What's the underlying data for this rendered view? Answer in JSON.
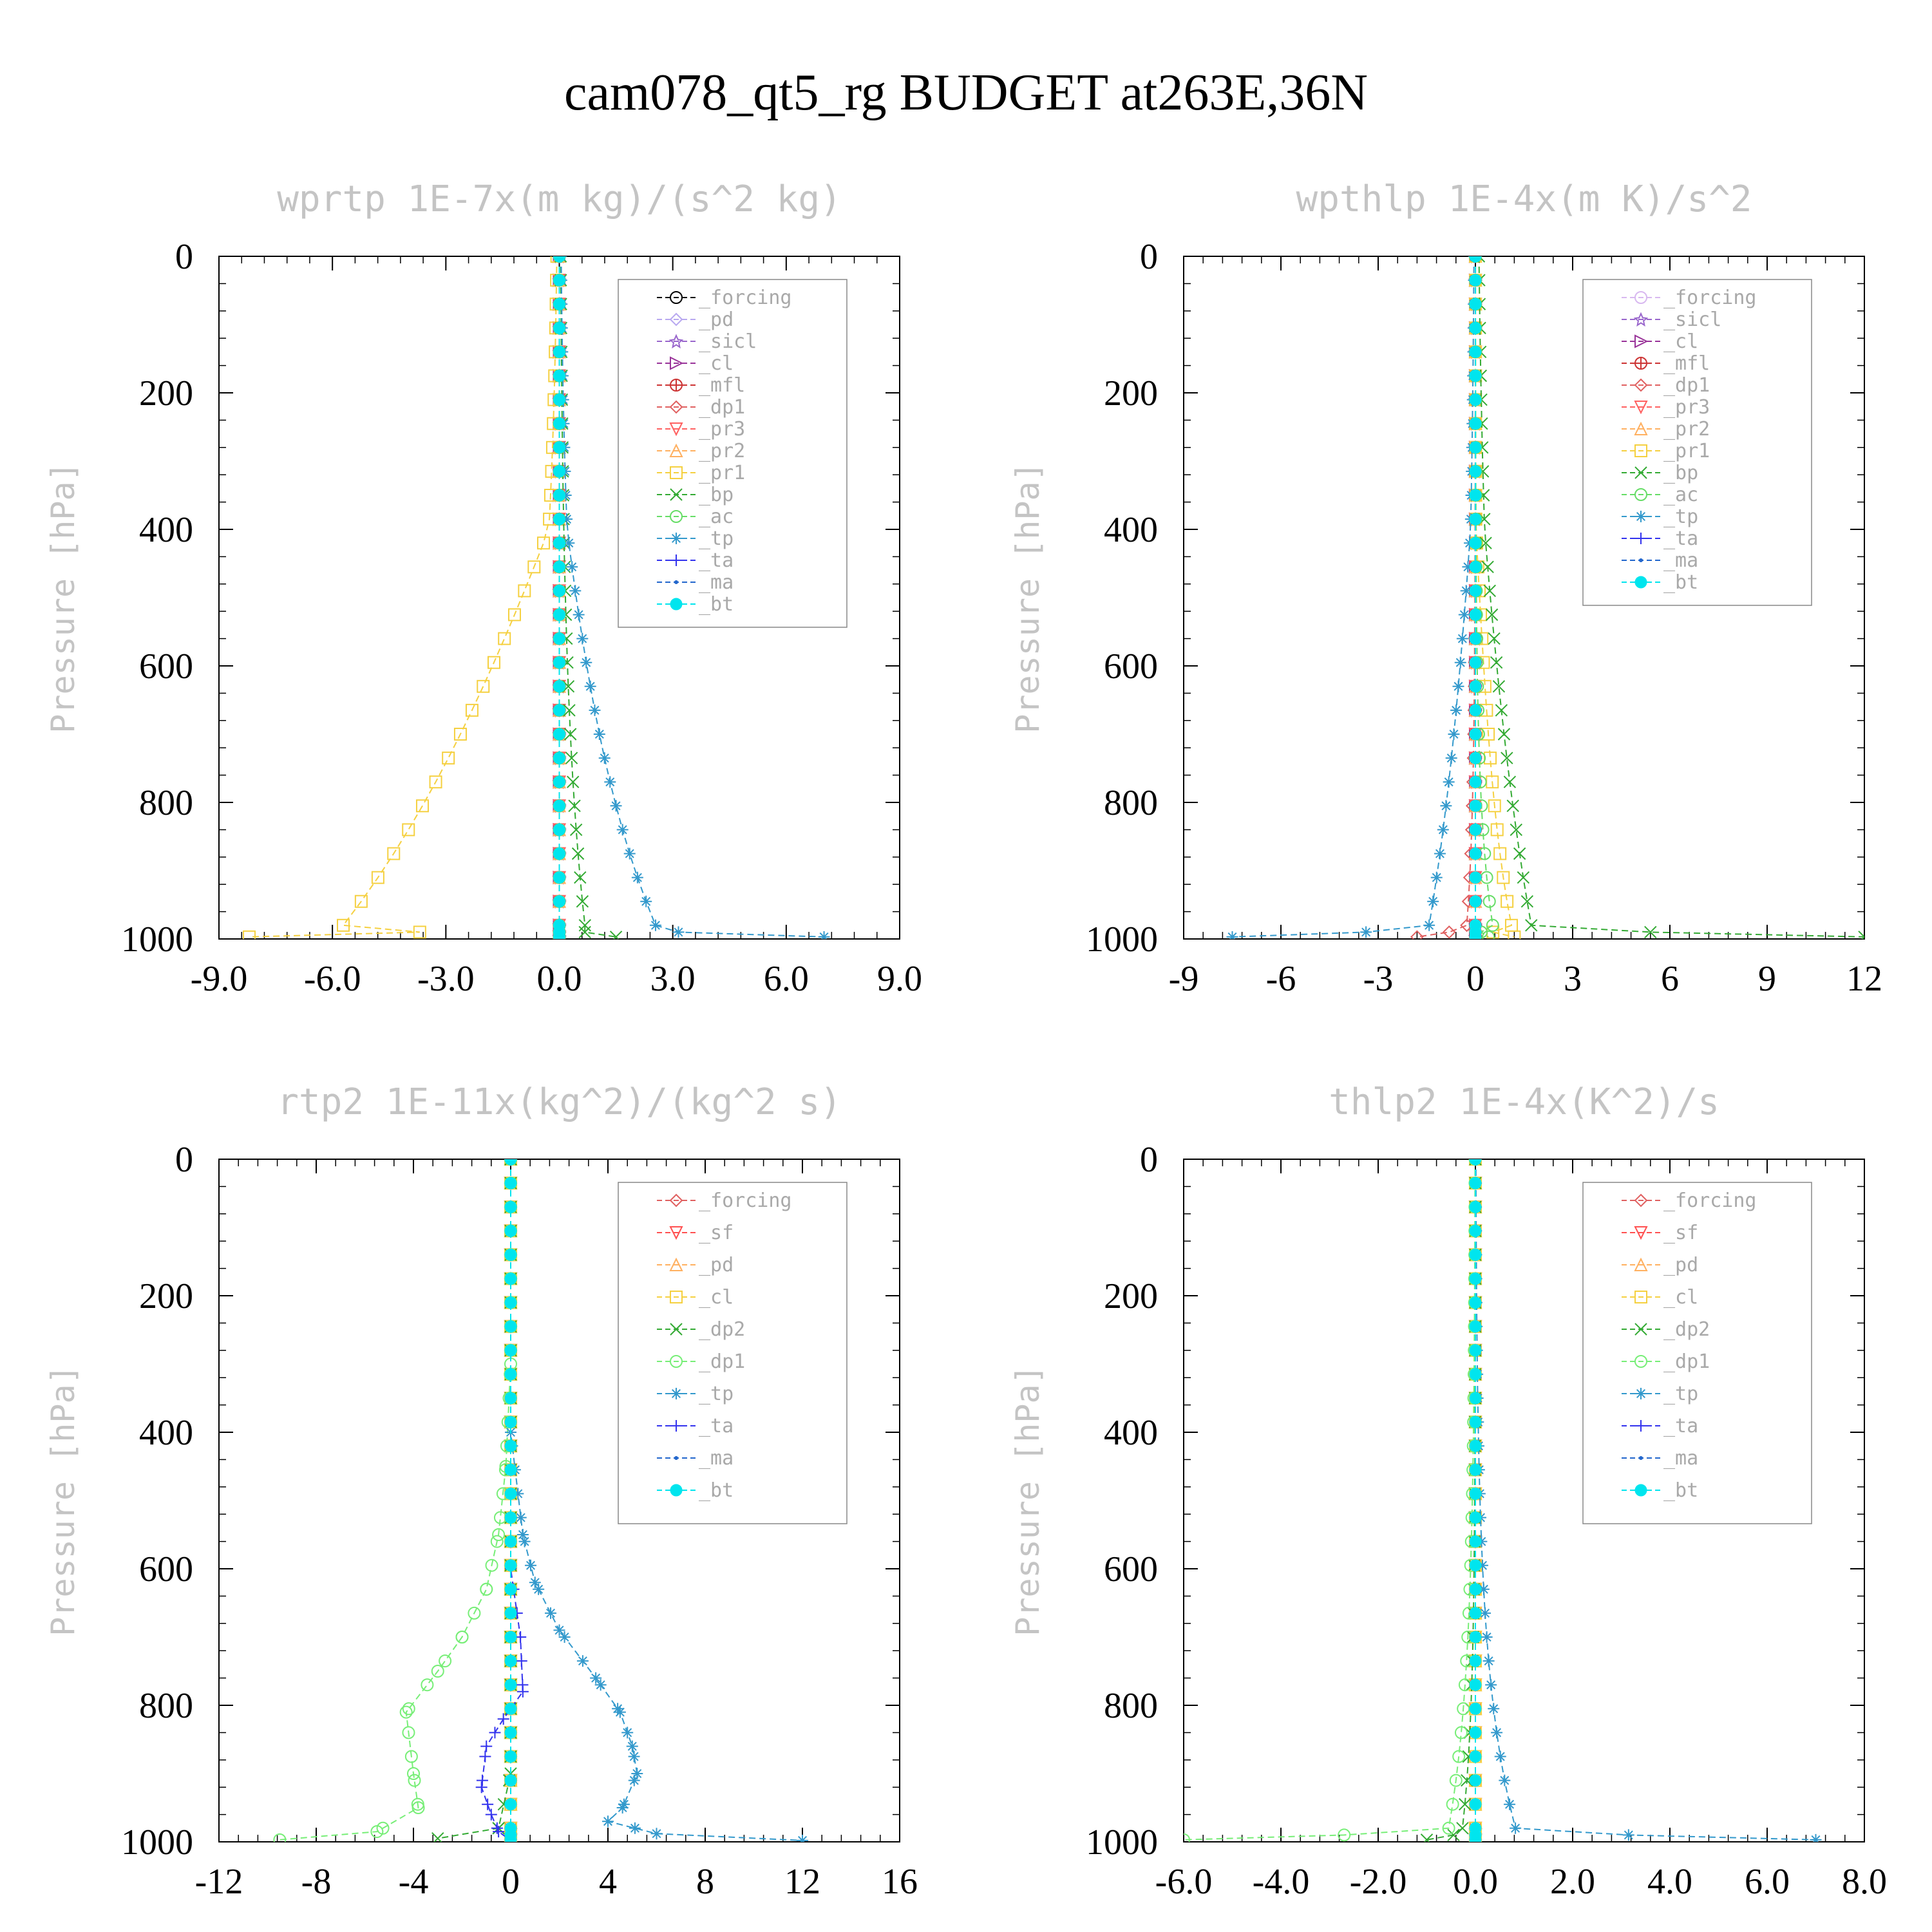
{
  "title": "cam078_qt5_rg  BUDGET at263E,36N",
  "chart_data": [
    {
      "type": "line",
      "title": "wprtp  1E-7x(m kg)/(s^2 kg)",
      "ylabel": "Pressure [hPa]",
      "xlim": [
        -9,
        9
      ],
      "ylim": [
        0,
        1000
      ],
      "xticks": [
        "-9.0",
        "-6.0",
        "-3.0",
        "0.0",
        "3.0",
        "6.0",
        "9.0"
      ],
      "yticks": [
        "0",
        "200",
        "400",
        "600",
        "800",
        "1000"
      ],
      "legend_position": "top-right",
      "legend": [
        "_forcing",
        "_pd",
        "_sicl",
        "_cl",
        "_mfl",
        "_dp1",
        "_pr3",
        "_pr2",
        "_pr1",
        "_bp",
        "_ac",
        "_tp",
        "_ta",
        "_ma",
        "_bt"
      ],
      "series": [
        {
          "name": "_forcing",
          "color": "#000000",
          "marker": "circle",
          "profile": {
            "amp": 0
          }
        },
        {
          "name": "_pd",
          "color": "#b8a8f0",
          "marker": "diamond",
          "profile": {
            "amp": 0
          }
        },
        {
          "name": "_sicl",
          "color": "#9966cc",
          "marker": "star",
          "profile": {
            "amp": 0
          }
        },
        {
          "name": "_cl",
          "color": "#993399",
          "marker": "tri-right",
          "profile": {
            "amp": 0
          }
        },
        {
          "name": "_mfl",
          "color": "#cc3333",
          "marker": "circle-plus",
          "profile": {
            "amp": 0
          }
        },
        {
          "name": "_dp1",
          "color": "#e06060",
          "marker": "diamond",
          "profile": {
            "amp": 0
          }
        },
        {
          "name": "_pr3",
          "color": "#ff6060",
          "marker": "tri-down",
          "profile": {
            "amp": 0
          }
        },
        {
          "name": "_pr2",
          "color": "#ffb060",
          "marker": "tri-up",
          "profile": {
            "amp": 0
          }
        },
        {
          "name": "_pr1",
          "color": "#f5d040",
          "marker": "square",
          "profile": {
            "amp": -0.4,
            "tau": 0.012,
            "slope": -0.012,
            "sfc": -8.2
          }
        },
        {
          "name": "_bp",
          "color": "#33aa33",
          "marker": "x",
          "profile": {
            "amp": 0.12,
            "tau": 0.01,
            "slope": 0.0,
            "sfc": 1.5
          }
        },
        {
          "name": "_ac",
          "color": "#66dd66",
          "marker": "circle",
          "profile": {
            "amp": 0
          }
        },
        {
          "name": "_tp",
          "color": "#3399cc",
          "marker": "asterisk",
          "profile": {
            "amp": 0.3,
            "tau": 0.012,
            "slope": 0.003,
            "sfc": 7.0
          }
        },
        {
          "name": "_ta",
          "color": "#3333ee",
          "marker": "plus",
          "profile": {
            "amp": 0
          }
        },
        {
          "name": "_ma",
          "color": "#2266cc",
          "marker": "dot",
          "profile": {
            "amp": 0
          }
        },
        {
          "name": "_bt",
          "color": "#00e5ee",
          "marker": "filled-circle",
          "profile": {
            "amp": 0
          }
        }
      ]
    },
    {
      "type": "line",
      "title": "wpthlp  1E-4x(m K)/s^2",
      "ylabel": "Pressure [hPa]",
      "xlim": [
        -9,
        12
      ],
      "ylim": [
        0,
        1000
      ],
      "xticks": [
        "-9",
        "-6",
        "-3",
        "0",
        "3",
        "6",
        "9",
        "12"
      ],
      "yticks": [
        "0",
        "200",
        "400",
        "600",
        "800",
        "1000"
      ],
      "legend_position": "top-right",
      "legend": [
        "_forcing",
        "_sicl",
        "_cl",
        "_mfl",
        "_dp1",
        "_pr3",
        "_pr2",
        "_pr1",
        "_bp",
        "_ac",
        "_tp",
        "_ta",
        "_ma",
        "_bt"
      ],
      "series": [
        {
          "name": "_forcing",
          "color": "#d8b8f0",
          "marker": "circle",
          "profile": {
            "amp": 0
          }
        },
        {
          "name": "_sicl",
          "color": "#9966cc",
          "marker": "star",
          "profile": {
            "amp": 0
          }
        },
        {
          "name": "_cl",
          "color": "#993399",
          "marker": "tri-right",
          "profile": {
            "amp": 0
          }
        },
        {
          "name": "_mfl",
          "color": "#cc3333",
          "marker": "circle-plus",
          "profile": {
            "amp": 0
          }
        },
        {
          "name": "_dp1",
          "color": "#e06060",
          "marker": "diamond",
          "profile": {
            "amp": -0.05,
            "tau": 0.02,
            "slope": 0,
            "sfc": -1.8
          }
        },
        {
          "name": "_pr3",
          "color": "#ff6060",
          "marker": "tri-down",
          "profile": {
            "amp": 0
          }
        },
        {
          "name": "_pr2",
          "color": "#ffb060",
          "marker": "tri-up",
          "profile": {
            "amp": 0
          }
        },
        {
          "name": "_pr1",
          "color": "#f5d040",
          "marker": "square",
          "profile": {
            "amp": 0.1,
            "tau": 0.02,
            "slope": 0.002,
            "sfc": 1.2
          }
        },
        {
          "name": "_bp",
          "color": "#33aa33",
          "marker": "x",
          "profile": {
            "amp": 0.2,
            "tau": 0.008,
            "slope": 0.002,
            "sfc": 12.0
          }
        },
        {
          "name": "_ac",
          "color": "#66dd66",
          "marker": "circle",
          "profile": {
            "amp": 0.1,
            "tau": 0.02,
            "slope": 0,
            "sfc": 0.4
          }
        },
        {
          "name": "_tp",
          "color": "#3399cc",
          "marker": "asterisk",
          "profile": {
            "amp": -0.15,
            "tau": 0.01,
            "slope": -0.002,
            "sfc": -7.5
          }
        },
        {
          "name": "_ta",
          "color": "#3333ee",
          "marker": "plus",
          "profile": {
            "amp": 0
          }
        },
        {
          "name": "_ma",
          "color": "#2266cc",
          "marker": "dot",
          "profile": {
            "amp": 0
          }
        },
        {
          "name": "_bt",
          "color": "#00e5ee",
          "marker": "filled-circle",
          "profile": {
            "amp": 0
          }
        }
      ]
    },
    {
      "type": "line",
      "title": "rtp2  1E-11x(kg^2)/(kg^2 s)",
      "ylabel": "Pressure [hPa]",
      "xlim": [
        -12,
        16
      ],
      "ylim": [
        0,
        1000
      ],
      "xticks": [
        "-12",
        "-8",
        "-4",
        "0",
        "4",
        "8",
        "12",
        "16"
      ],
      "yticks": [
        "0",
        "200",
        "400",
        "600",
        "800",
        "1000"
      ],
      "legend_position": "top-right",
      "legend": [
        "_forcing",
        "_sf",
        "_pd",
        "_cl",
        "_dp2",
        "_dp1",
        "_tp",
        "_ta",
        "_ma",
        "_bt"
      ],
      "series": [
        {
          "name": "_forcing",
          "color": "#e06060",
          "marker": "diamond",
          "points": []
        },
        {
          "name": "_sf",
          "color": "#ff5050",
          "marker": "tri-down",
          "points": []
        },
        {
          "name": "_pd",
          "color": "#ffb060",
          "marker": "tri-up",
          "points": []
        },
        {
          "name": "_cl",
          "color": "#f5d040",
          "marker": "square",
          "points": []
        },
        {
          "name": "_dp2",
          "color": "#33aa33",
          "marker": "x",
          "points": [
            [
              0,
              0
            ],
            [
              0,
              900
            ],
            [
              -0.5,
              980
            ],
            [
              -3,
              995
            ]
          ]
        },
        {
          "name": "_dp1",
          "color": "#77ee77",
          "marker": "circle",
          "points": [
            [
              0,
              0
            ],
            [
              0,
              300
            ],
            [
              -0.2,
              450
            ],
            [
              -0.5,
              550
            ],
            [
              -1.0,
              630
            ],
            [
              -2.0,
              700
            ],
            [
              -3.0,
              750
            ],
            [
              -4.3,
              810
            ],
            [
              -4.0,
              900
            ],
            [
              -3.8,
              950
            ],
            [
              -5.5,
              985
            ],
            [
              -9.5,
              997
            ]
          ]
        },
        {
          "name": "_tp",
          "color": "#3399cc",
          "marker": "asterisk",
          "points": [
            [
              0,
              0
            ],
            [
              0,
              400
            ],
            [
              0.5,
              550
            ],
            [
              1.0,
              620
            ],
            [
              2.0,
              690
            ],
            [
              3.5,
              760
            ],
            [
              4.5,
              810
            ],
            [
              5.0,
              860
            ],
            [
              5.2,
              900
            ],
            [
              4.6,
              950
            ],
            [
              4.0,
              970
            ],
            [
              6.0,
              988
            ],
            [
              12.0,
              998
            ]
          ]
        },
        {
          "name": "_ta",
          "color": "#3333ee",
          "marker": "plus",
          "points": [
            [
              0,
              0
            ],
            [
              0,
              600
            ],
            [
              0.4,
              700
            ],
            [
              0.5,
              780
            ],
            [
              -0.3,
              820
            ],
            [
              -1.0,
              860
            ],
            [
              -1.2,
              920
            ],
            [
              -0.8,
              960
            ],
            [
              -0.5,
              985
            ],
            [
              0,
              998
            ]
          ]
        },
        {
          "name": "_ma",
          "color": "#2266cc",
          "marker": "dot",
          "points": []
        },
        {
          "name": "_bt",
          "color": "#00e5ee",
          "marker": "filled-circle",
          "points": []
        }
      ]
    },
    {
      "type": "line",
      "title": "thlp2  1E-4x(K^2)/s",
      "ylabel": "Pressure [hPa]",
      "xlim": [
        -6,
        8
      ],
      "ylim": [
        0,
        1000
      ],
      "xticks": [
        "-6.0",
        "-4.0",
        "-2.0",
        "0.0",
        "2.0",
        "4.0",
        "6.0",
        "8.0"
      ],
      "yticks": [
        "0",
        "200",
        "400",
        "600",
        "800",
        "1000"
      ],
      "legend_position": "top-right",
      "legend": [
        "_forcing",
        "_sf",
        "_pd",
        "_cl",
        "_dp2",
        "_dp1",
        "_tp",
        "_ta",
        "_ma",
        "_bt"
      ],
      "series": [
        {
          "name": "_forcing",
          "color": "#e06060",
          "marker": "diamond",
          "profile": {
            "amp": 0
          }
        },
        {
          "name": "_sf",
          "color": "#ff5050",
          "marker": "tri-down",
          "profile": {
            "amp": 0
          }
        },
        {
          "name": "_pd",
          "color": "#ffb060",
          "marker": "tri-up",
          "profile": {
            "amp": 0
          }
        },
        {
          "name": "_cl",
          "color": "#f5d040",
          "marker": "square",
          "profile": {
            "amp": 0
          }
        },
        {
          "name": "_dp2",
          "color": "#33aa33",
          "marker": "x",
          "profile": {
            "amp": -0.05,
            "tau": 0.02,
            "slope": 0,
            "sfc": -1.0
          }
        },
        {
          "name": "_dp1",
          "color": "#77ee77",
          "marker": "circle",
          "profile": {
            "amp": -0.1,
            "tau": 0.015,
            "slope": 0,
            "sfc": -6.0
          }
        },
        {
          "name": "_tp",
          "color": "#3399cc",
          "marker": "asterisk",
          "profile": {
            "amp": 0.15,
            "tau": 0.015,
            "slope": 0,
            "sfc": 7.0
          }
        },
        {
          "name": "_ta",
          "color": "#3333ee",
          "marker": "plus",
          "profile": {
            "amp": 0
          }
        },
        {
          "name": "_ma",
          "color": "#2266cc",
          "marker": "dot",
          "profile": {
            "amp": 0
          }
        },
        {
          "name": "_bt",
          "color": "#00e5ee",
          "marker": "filled-circle",
          "profile": {
            "amp": 0
          }
        }
      ]
    }
  ]
}
